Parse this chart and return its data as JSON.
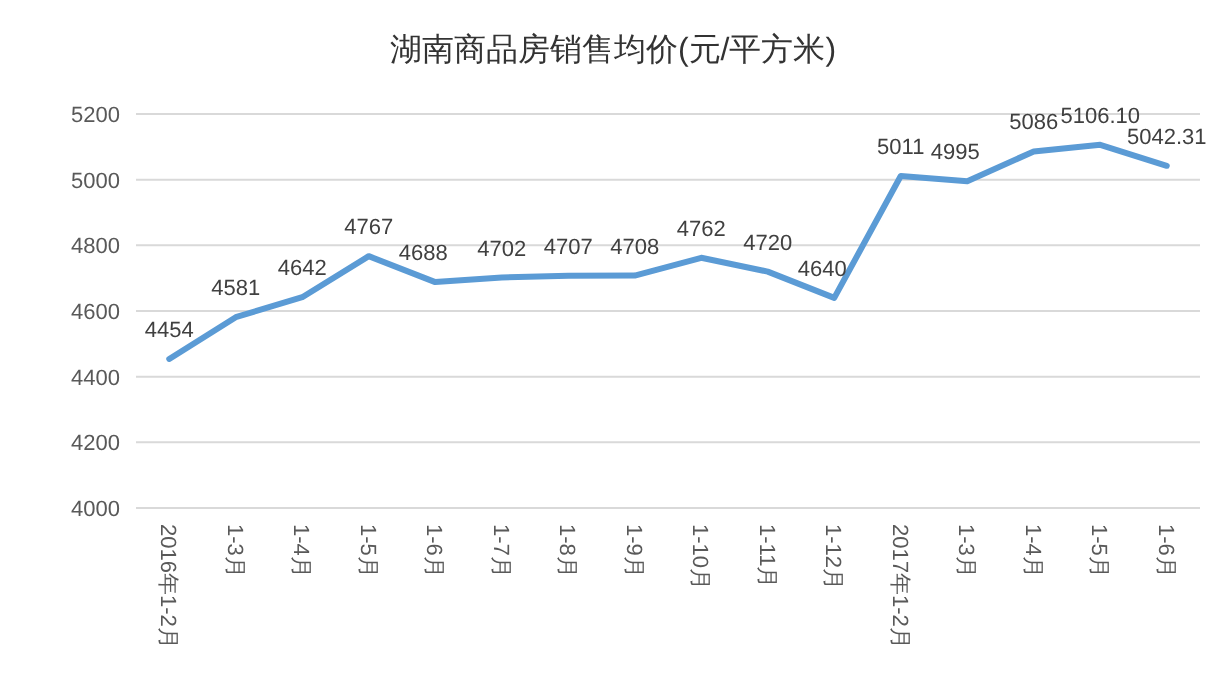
{
  "chart_data": {
    "type": "line",
    "title": "湖南商品房销售均价(元/平方米)",
    "categories": [
      "2016年1-2月",
      "1-3月",
      "1-4月",
      "1-5月",
      "1-6月",
      "1-7月",
      "1-8月",
      "1-9月",
      "1-10月",
      "1-11月",
      "1-12月",
      "2017年1-2月",
      "1-3月",
      "1-4月",
      "1-5月",
      "1-6月"
    ],
    "series": [
      {
        "color": "#5b9bd5",
        "values": [
          4454,
          4581,
          4642,
          4767,
          4688,
          4702,
          4707,
          4708,
          4762,
          4720,
          4640,
          5011,
          4995,
          5086,
          5106.1,
          5042.31
        ],
        "value_labels": [
          "4454",
          "4581",
          "4642",
          "4767",
          "4688",
          "4702",
          "4707",
          "4708",
          "4762",
          "4720",
          "4640",
          "5011",
          "4995",
          "5086",
          "5106.10",
          "5042.31"
        ]
      }
    ],
    "ylim": [
      4000,
      5200
    ],
    "yticks": [
      4000,
      4200,
      4400,
      4600,
      4800,
      5000,
      5200
    ],
    "grid": "y",
    "marker": "none",
    "line_style": "solid"
  }
}
